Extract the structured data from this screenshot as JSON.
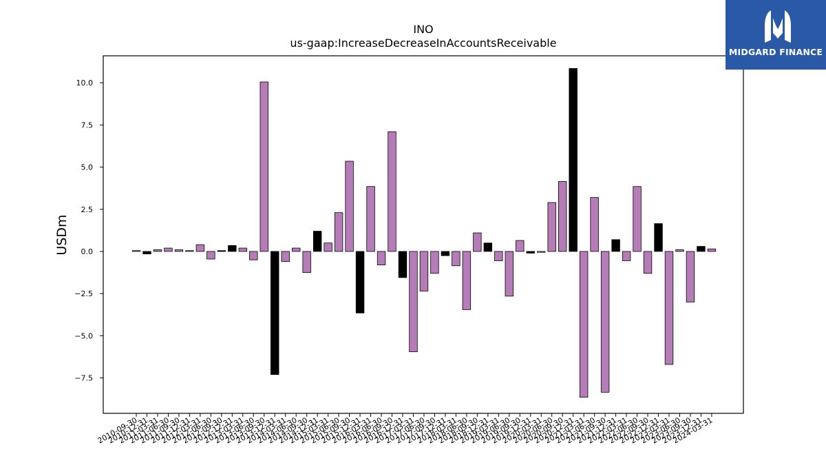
{
  "chart_data": {
    "type": "bar",
    "title": "INO",
    "subtitle": "us-gaap:IncreaseDecreaseInAccountsReceivable",
    "ylabel": "USDm",
    "xlabel": "",
    "ylim": [
      -9.6,
      11.6
    ],
    "yticks": [
      -7.5,
      -5.0,
      -2.5,
      0.0,
      2.5,
      5.0,
      7.5,
      10.0
    ],
    "grid": false,
    "colors": {
      "default": "#b57cb8",
      "highlight": "#000000",
      "edge": "#000000"
    },
    "categories": [
      "2010-09-30",
      "2010-12-31",
      "2011-03-31",
      "2011-06-30",
      "2011-09-30",
      "2011-12-31",
      "2012-03-31",
      "2012-06-30",
      "2012-09-30",
      "2012-12-31",
      "2013-03-31",
      "2013-06-30",
      "2013-09-30",
      "2013-12-31",
      "2014-03-31",
      "2014-06-30",
      "2014-09-30",
      "2014-12-31",
      "2015-03-31",
      "2015-06-30",
      "2015-09-30",
      "2015-12-31",
      "2016-03-31",
      "2016-06-30",
      "2016-09-30",
      "2016-12-31",
      "2017-03-31",
      "2017-06-30",
      "2017-09-30",
      "2017-12-31",
      "2018-03-31",
      "2018-06-30",
      "2018-09-30",
      "2018-12-31",
      "2019-03-31",
      "2019-06-30",
      "2019-09-30",
      "2019-12-31",
      "2020-03-31",
      "2020-06-30",
      "2020-09-30",
      "2020-12-31",
      "2021-03-31",
      "2021-06-30",
      "2021-09-30",
      "2021-12-31",
      "2022-03-31",
      "2022-06-30",
      "2022-09-30",
      "2022-12-31",
      "2023-03-31",
      "2023-06-30",
      "2023-09-30",
      "2023-12-31",
      "2024-03-31"
    ],
    "values": [
      0.05,
      -0.15,
      0.1,
      0.2,
      0.1,
      0.05,
      0.4,
      -0.45,
      0.05,
      0.35,
      0.2,
      -0.5,
      10.05,
      -7.3,
      -0.6,
      0.2,
      -1.25,
      1.2,
      0.5,
      2.3,
      5.35,
      -3.65,
      3.85,
      -0.8,
      7.1,
      -1.55,
      -5.95,
      -2.35,
      -1.3,
      -0.25,
      -0.85,
      -3.45,
      1.1,
      0.5,
      -0.55,
      -2.65,
      0.65,
      -0.1,
      -0.05,
      2.9,
      4.15,
      10.85,
      -8.65,
      3.2,
      -8.35,
      0.7,
      -0.55,
      3.85,
      -1.3,
      1.65,
      -6.7,
      0.1,
      -3.0,
      0.3,
      0.15
    ],
    "highlight": [
      false,
      true,
      false,
      false,
      false,
      false,
      false,
      false,
      true,
      true,
      false,
      false,
      false,
      true,
      false,
      false,
      false,
      true,
      false,
      false,
      false,
      true,
      false,
      false,
      false,
      true,
      false,
      false,
      false,
      true,
      false,
      false,
      false,
      true,
      false,
      false,
      false,
      true,
      false,
      false,
      false,
      true,
      false,
      false,
      false,
      true,
      false,
      false,
      false,
      true,
      false,
      false,
      false,
      true,
      false
    ]
  },
  "logo": {
    "text": "MIDGARD FINANCE",
    "icon": "midgard-logo-icon"
  }
}
